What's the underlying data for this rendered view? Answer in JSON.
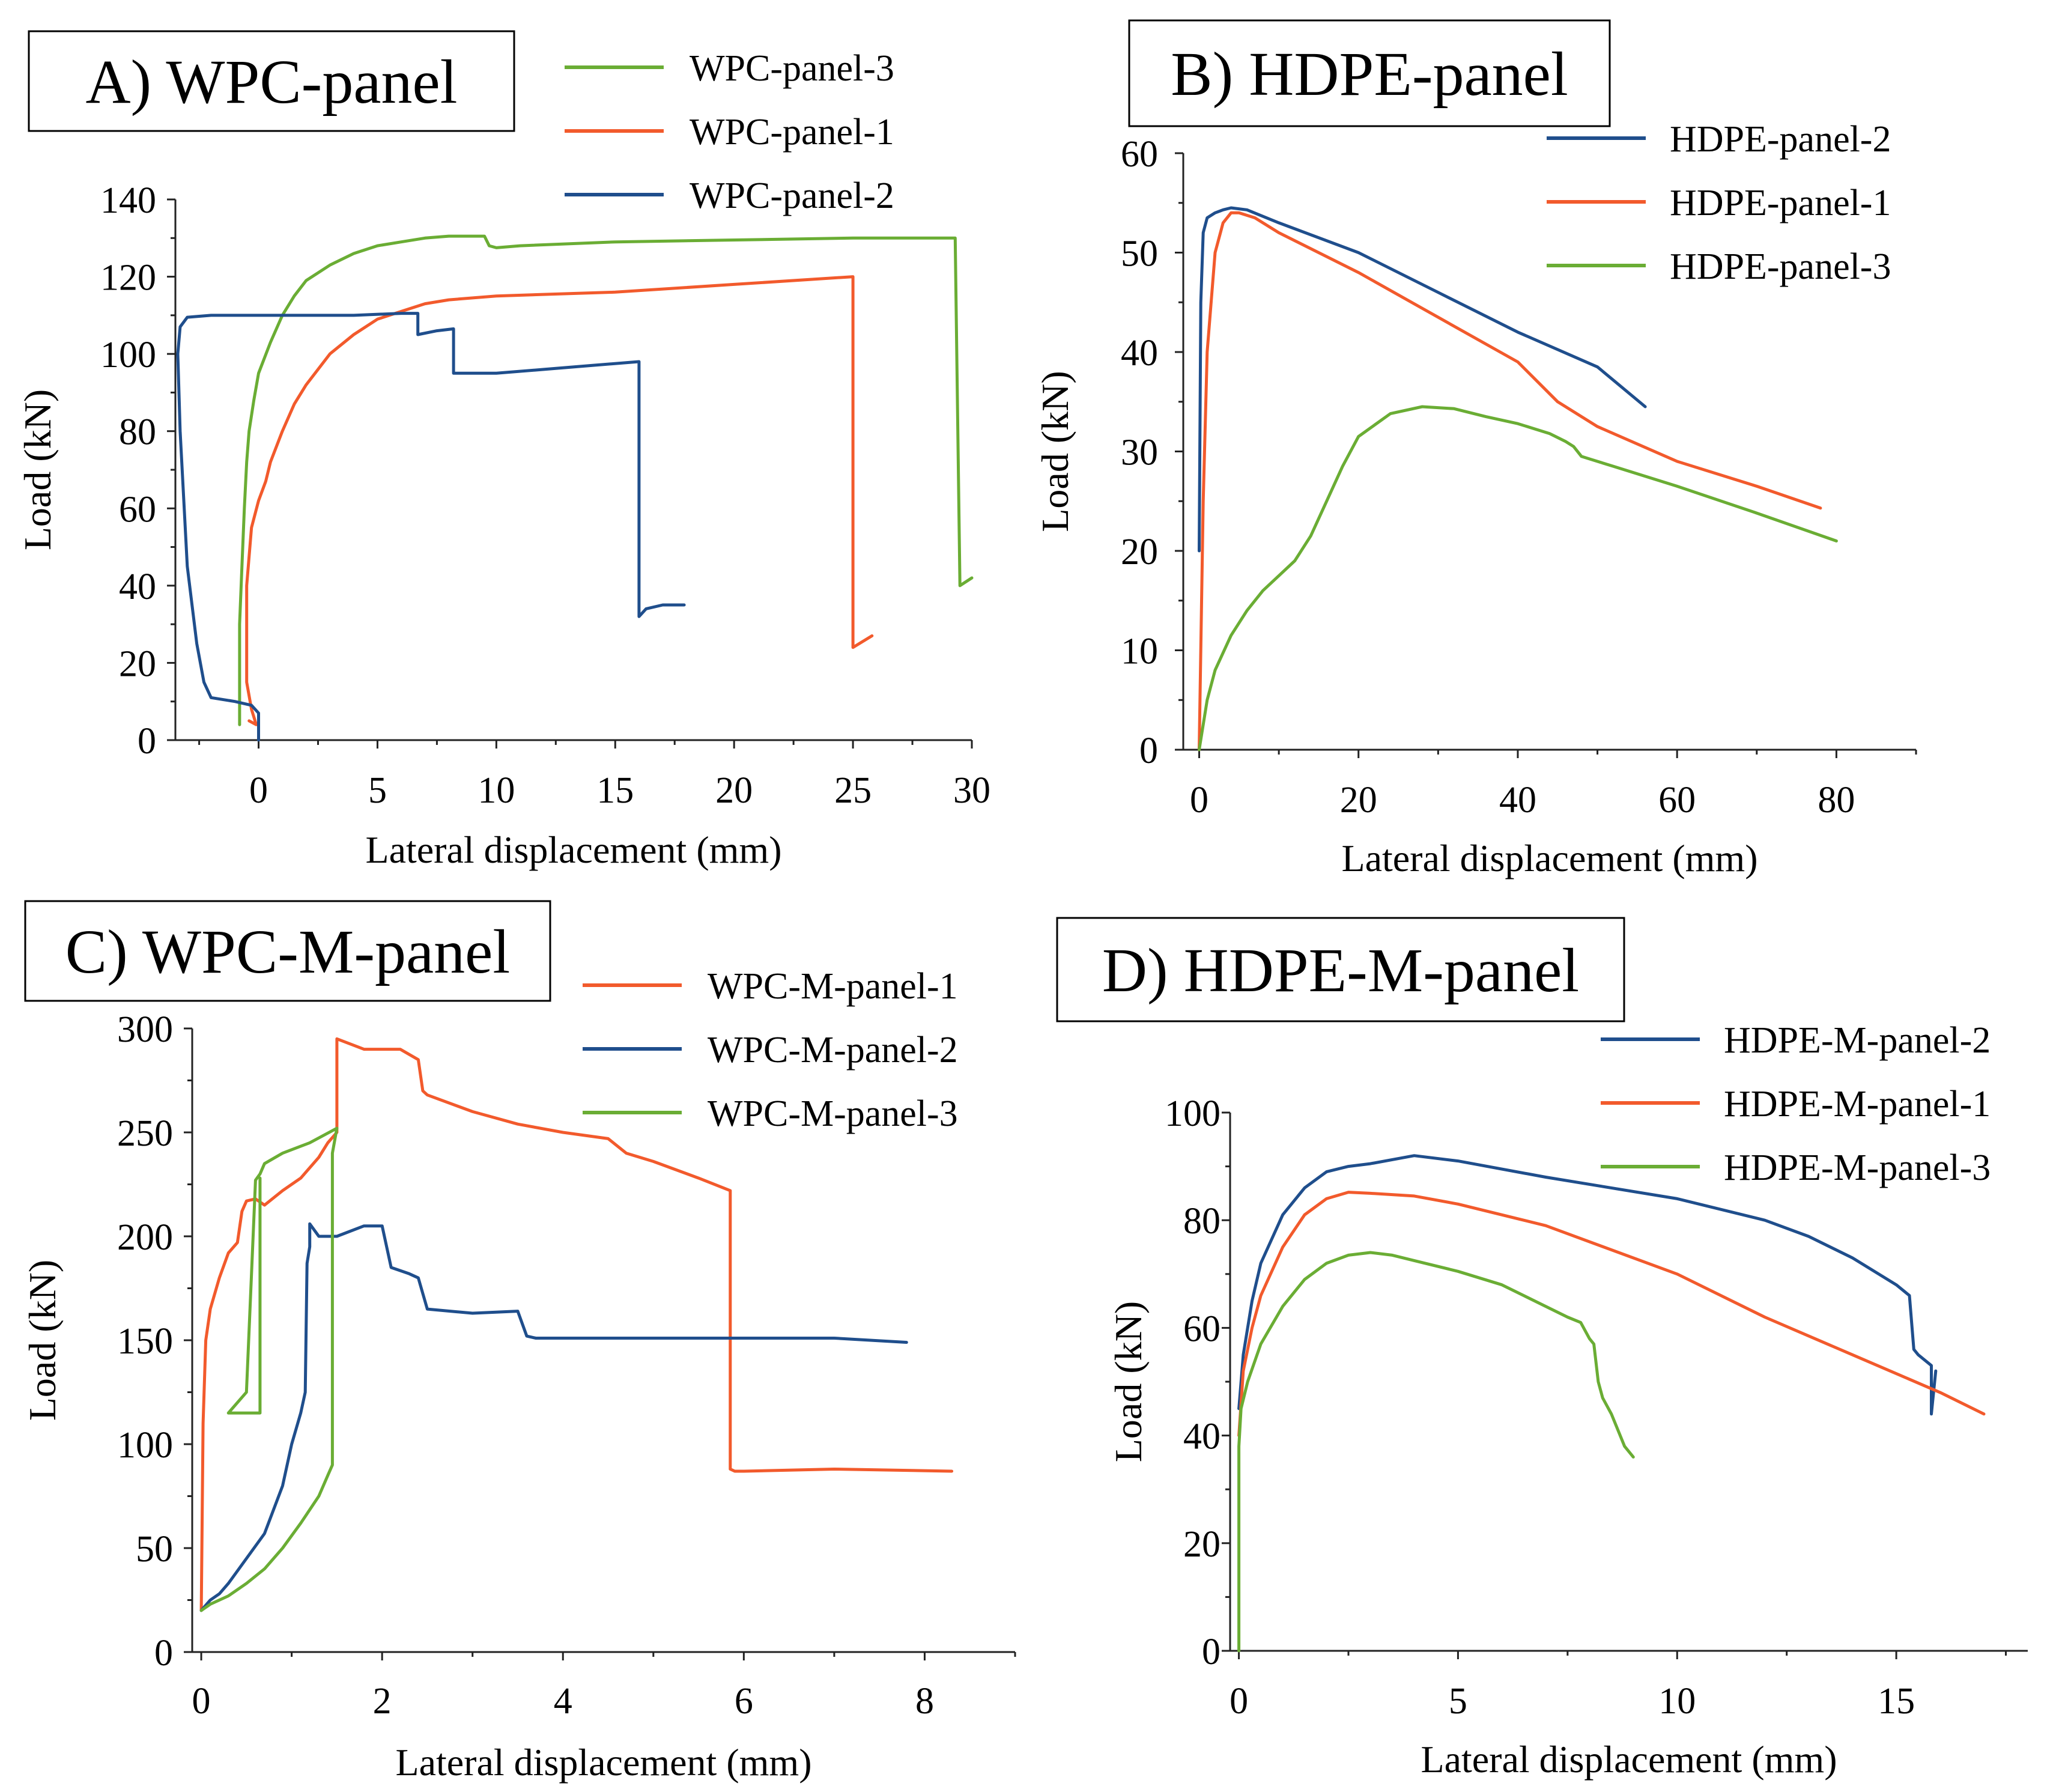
{
  "colors": {
    "blue": "#1f4e8c",
    "orange": "#f25a2c",
    "green": "#6aad34"
  },
  "chart_data": [
    {
      "type": "line",
      "title": "A) WPC-panel",
      "xlabel": "Lateral displacement (mm)",
      "ylabel": "Load (kN)",
      "xlim": [
        -3.5,
        30
      ],
      "ylim": [
        0,
        140
      ],
      "xticks": [
        "0",
        "5",
        "10",
        "15",
        "20",
        "25",
        "30"
      ],
      "yticks": [
        "0",
        "20",
        "40",
        "60",
        "80",
        "100",
        "120",
        "140"
      ],
      "grid": false,
      "legend_position": "top-right",
      "series": [
        {
          "name": "WPC-panel-3",
          "color": "green",
          "x": [
            -0.8,
            -0.8,
            -0.7,
            -0.6,
            -0.5,
            -0.4,
            -0.2,
            0,
            0.5,
            1,
            1.5,
            2,
            3,
            4,
            5,
            6,
            7,
            8,
            9,
            9.5,
            9.7,
            10,
            11,
            15,
            20,
            25,
            29.3,
            29.5,
            30
          ],
          "y": [
            4,
            30,
            45,
            60,
            72,
            80,
            88,
            95,
            103,
            110,
            115,
            119,
            123,
            126,
            128,
            129,
            130,
            130.5,
            130.5,
            130.5,
            128,
            127.5,
            128,
            129,
            129.5,
            130,
            130,
            40,
            42
          ]
        },
        {
          "name": "WPC-panel-1",
          "color": "orange",
          "x": [
            -0.4,
            -0.1,
            -0.3,
            -0.5,
            -0.5,
            -0.3,
            0,
            0.3,
            0.5,
            1,
            1.5,
            2,
            3,
            4,
            5,
            6,
            7,
            8,
            10,
            15,
            20,
            25,
            25,
            25.8
          ],
          "y": [
            5,
            4,
            8,
            15,
            40,
            55,
            62,
            67,
            72,
            80,
            87,
            92,
            100,
            105,
            109,
            111,
            113,
            114,
            115,
            116,
            118,
            120,
            24,
            27
          ]
        },
        {
          "name": "WPC-panel-2",
          "color": "blue",
          "x": [
            0,
            0,
            -0.3,
            -1,
            -2,
            -2.3,
            -2.6,
            -3,
            -3.3,
            -3.4,
            -3.3,
            -3,
            -2,
            0,
            2,
            4,
            6,
            6.7,
            6.7,
            7.5,
            7.5,
            8.2,
            8.2,
            10,
            12,
            14,
            16,
            16,
            16.3,
            17,
            17.9
          ],
          "y": [
            0,
            7,
            9,
            10,
            11,
            15,
            25,
            45,
            80,
            100,
            107,
            109.5,
            110,
            110,
            110,
            110,
            110.5,
            110.5,
            105,
            106,
            106,
            106.5,
            95,
            95,
            96,
            97,
            98,
            32,
            34,
            35,
            35
          ]
        }
      ]
    },
    {
      "type": "line",
      "title": "B) HDPE-panel",
      "xlabel": "Lateral displacement (mm)",
      "ylabel": "Load (kN)",
      "xlim": [
        -2,
        90
      ],
      "ylim": [
        0,
        60
      ],
      "xticks": [
        "0",
        "20",
        "40",
        "60",
        "80"
      ],
      "yticks": [
        "0",
        "10",
        "20",
        "30",
        "40",
        "50",
        "60"
      ],
      "grid": false,
      "legend_position": "top-right",
      "series": [
        {
          "name": "HDPE-panel-2",
          "color": "blue",
          "x": [
            0,
            0.2,
            0.5,
            1,
            2,
            3,
            4,
            6,
            10,
            20,
            30,
            40,
            50,
            56
          ],
          "y": [
            20,
            45,
            52,
            53.5,
            54,
            54.3,
            54.5,
            54.3,
            53,
            50,
            46,
            42,
            38.5,
            34.5
          ]
        },
        {
          "name": "HDPE-panel-1",
          "color": "orange",
          "x": [
            0,
            0.5,
            1,
            2,
            3,
            4,
            5,
            7,
            10,
            20,
            30,
            40,
            45,
            50,
            60,
            70,
            78
          ],
          "y": [
            0,
            25,
            40,
            50,
            53,
            54,
            54,
            53.5,
            52,
            48,
            43.5,
            39,
            35,
            32.5,
            29,
            26.5,
            24.3
          ]
        },
        {
          "name": "HDPE-panel-3",
          "color": "green",
          "x": [
            0,
            1,
            2,
            4,
            6,
            8,
            10,
            12,
            14,
            16,
            18,
            20,
            24,
            28,
            32,
            36,
            40,
            44,
            46,
            47,
            48,
            52,
            60,
            70,
            80
          ],
          "y": [
            0,
            5,
            8,
            11.5,
            14,
            16,
            17.5,
            19,
            21.5,
            25,
            28.5,
            31.5,
            33.8,
            34.5,
            34.3,
            33.5,
            32.8,
            31.8,
            31,
            30.5,
            29.5,
            28.5,
            26.5,
            23.8,
            21
          ]
        }
      ]
    },
    {
      "type": "line",
      "title": "C) WPC-M-panel",
      "xlabel": "Lateral displacement (mm)",
      "ylabel": "Load (kN)",
      "xlim": [
        -0.1,
        9
      ],
      "ylim": [
        0,
        300
      ],
      "xticks": [
        "0",
        "2",
        "4",
        "6",
        "8"
      ],
      "yticks": [
        "0",
        "50",
        "100",
        "150",
        "200",
        "250",
        "300"
      ],
      "grid": false,
      "legend_position": "top-right",
      "series": [
        {
          "name": "WPC-M-panel-1",
          "color": "orange",
          "x": [
            0,
            0.02,
            0.05,
            0.1,
            0.2,
            0.3,
            0.4,
            0.45,
            0.5,
            0.6,
            0.7,
            0.9,
            1.1,
            1.3,
            1.4,
            1.5,
            1.5,
            1.8,
            2.2,
            2.4,
            2.45,
            2.5,
            3,
            3.5,
            4,
            4.5,
            4.7,
            5,
            5.5,
            5.85,
            5.85,
            5.9,
            6,
            7,
            8.3
          ],
          "y": [
            20,
            110,
            150,
            165,
            180,
            192,
            197,
            212,
            217,
            218,
            215,
            222,
            228,
            238,
            245,
            250,
            295,
            290,
            290,
            285,
            270,
            268,
            260,
            254,
            250,
            247,
            240,
            236,
            228,
            222,
            88,
            87,
            87,
            88,
            87
          ]
        },
        {
          "name": "WPC-M-panel-2",
          "color": "blue",
          "x": [
            0,
            0.1,
            0.2,
            0.3,
            0.5,
            0.7,
            0.9,
            1,
            1.1,
            1.15,
            1.17,
            1.2,
            1.2,
            1.3,
            1.5,
            1.8,
            2,
            2.1,
            2.3,
            2.4,
            2.5,
            3,
            3.5,
            3.6,
            3.7,
            5,
            6,
            7,
            7.8
          ],
          "y": [
            20,
            25,
            28,
            33,
            45,
            57,
            80,
            100,
            115,
            125,
            187,
            195,
            206,
            200,
            200,
            205,
            205,
            185,
            182,
            180,
            165,
            163,
            164,
            152,
            151,
            151,
            151,
            151,
            149
          ]
        },
        {
          "name": "WPC-M-panel-3",
          "color": "green",
          "x": [
            0,
            0.1,
            0.3,
            0.5,
            0.7,
            0.9,
            1.1,
            1.3,
            1.4,
            1.45,
            1.45,
            1.5,
            1.5,
            1.2,
            0.9,
            0.7,
            0.65,
            0.6,
            0.5,
            0.3,
            0.6,
            0.65,
            0.65
          ],
          "y": [
            20,
            23,
            27,
            33,
            40,
            50,
            62,
            75,
            85,
            90,
            240,
            252,
            252,
            245,
            240,
            235,
            230,
            227,
            125,
            115,
            115,
            115,
            228
          ]
        }
      ]
    },
    {
      "type": "line",
      "title": "D) HDPE-M-panel",
      "xlabel": "Lateral displacement (mm)",
      "ylabel": "Load (kN)",
      "xlim": [
        -0.2,
        18
      ],
      "ylim": [
        0,
        100
      ],
      "xticks": [
        "0",
        "5",
        "10",
        "15"
      ],
      "yticks": [
        "0",
        "20",
        "40",
        "60",
        "80",
        "100"
      ],
      "grid": false,
      "legend_position": "top-right",
      "series": [
        {
          "name": "HDPE-M-panel-2",
          "color": "blue",
          "x": [
            0,
            0.1,
            0.3,
            0.5,
            1,
            1.5,
            2,
            2.5,
            3,
            4,
            5,
            7,
            10,
            12,
            13,
            14,
            15,
            15.3,
            15.4,
            15.5,
            15.8,
            15.8,
            15.9
          ],
          "y": [
            45,
            55,
            65,
            72,
            81,
            86,
            89,
            90,
            90.5,
            92,
            91,
            88,
            84,
            80,
            77,
            73,
            68,
            66,
            56,
            55,
            53,
            44,
            52
          ]
        },
        {
          "name": "HDPE-M-panel-1",
          "color": "orange",
          "x": [
            0,
            0.1,
            0.3,
            0.5,
            1,
            1.5,
            2,
            2.5,
            3,
            4,
            5,
            7,
            10,
            12,
            14,
            16,
            17
          ],
          "y": [
            40,
            52,
            60,
            66,
            75,
            81,
            84,
            85.2,
            85,
            84.5,
            83,
            79,
            70,
            62,
            55,
            48,
            44
          ]
        },
        {
          "name": "HDPE-M-panel-3",
          "color": "green",
          "x": [
            0,
            0,
            0.05,
            0.2,
            0.5,
            1,
            1.5,
            2,
            2.5,
            3,
            3.5,
            4,
            5,
            6,
            7,
            7.5,
            7.8,
            8,
            8.1,
            8.2,
            8.3,
            8.5,
            8.7,
            8.8,
            9
          ],
          "y": [
            0,
            38,
            45,
            50,
            57,
            64,
            69,
            72,
            73.5,
            74,
            73.5,
            72.5,
            70.5,
            68,
            64,
            62,
            61,
            58,
            57,
            50,
            47,
            44,
            40,
            38,
            36
          ]
        }
      ]
    }
  ]
}
